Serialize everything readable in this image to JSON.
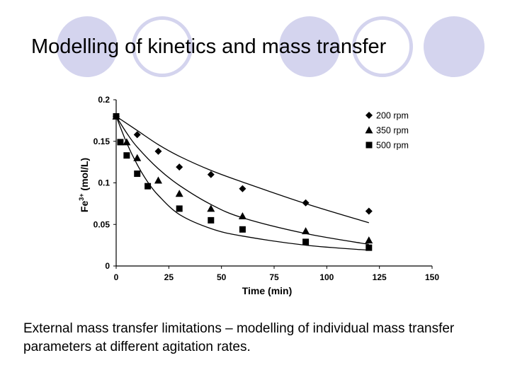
{
  "slide": {
    "title": "Modelling of kinetics and mass transfer",
    "caption": "External mass transfer limitations – modelling of individual mass transfer parameters at different agitation rates."
  },
  "colors": {
    "circle_fill": "#d4d4ee",
    "ink": "#000000"
  },
  "chart_data": {
    "type": "scatter",
    "title": "",
    "xlabel": "Time (min)",
    "ylabel": {
      "base": "Fe",
      "superscript": "3+",
      "rest": " (mol/L)"
    },
    "xlim": [
      0,
      150
    ],
    "ylim": [
      0,
      0.2
    ],
    "x_ticks": [
      0,
      25,
      50,
      75,
      100,
      125,
      150
    ],
    "x_tick_labels": [
      "0",
      "25",
      "50",
      "75",
      "100",
      "125",
      "150"
    ],
    "y_ticks": [
      0,
      0.05,
      0.1,
      0.15,
      0.2
    ],
    "y_tick_labels": [
      "0",
      "0.05",
      "0.1",
      "0.15",
      "0.2"
    ],
    "grid": false,
    "legend_position": "top-right",
    "series": [
      {
        "name": "200 rpm",
        "marker": "diamond",
        "x": [
          0,
          10,
          20,
          30,
          45,
          60,
          90,
          120
        ],
        "y": [
          0.18,
          0.158,
          0.138,
          0.119,
          0.11,
          0.093,
          0.076,
          0.066
        ],
        "model_x": [
          0,
          10,
          20,
          30,
          45,
          60,
          90,
          120
        ],
        "model_y": [
          0.18,
          0.163,
          0.146,
          0.132,
          0.115,
          0.101,
          0.075,
          0.052
        ]
      },
      {
        "name": "350 rpm",
        "marker": "triangle",
        "x": [
          0,
          5,
          10,
          20,
          30,
          45,
          60,
          90,
          120
        ],
        "y": [
          0.18,
          0.149,
          0.13,
          0.103,
          0.087,
          0.069,
          0.06,
          0.042,
          0.031
        ],
        "model_x": [
          0,
          5,
          10,
          20,
          30,
          45,
          60,
          90,
          120
        ],
        "model_y": [
          0.18,
          0.16,
          0.143,
          0.117,
          0.097,
          0.074,
          0.058,
          0.039,
          0.026
        ]
      },
      {
        "name": "500 rpm",
        "marker": "square",
        "x": [
          0,
          2,
          5,
          10,
          15,
          30,
          45,
          60,
          90,
          120
        ],
        "y": [
          0.18,
          0.149,
          0.133,
          0.111,
          0.096,
          0.069,
          0.055,
          0.044,
          0.029,
          0.022
        ],
        "model_x": [
          0,
          5,
          10,
          15,
          20,
          30,
          45,
          60,
          90,
          120
        ],
        "model_y": [
          0.18,
          0.148,
          0.122,
          0.101,
          0.085,
          0.062,
          0.045,
          0.036,
          0.025,
          0.019
        ]
      }
    ]
  }
}
